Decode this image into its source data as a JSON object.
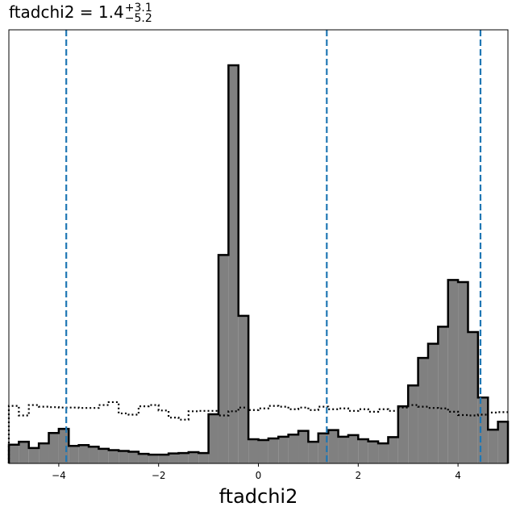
{
  "chart_data": {
    "type": "histogram",
    "title": {
      "param": "ftadchi2",
      "eq": " = ",
      "median": "1.4",
      "upper": "+3.1",
      "lower": "−5.2"
    },
    "xlabel": "ftadchi2",
    "ylabel": "",
    "xlim": [
      -5,
      5
    ],
    "ylim": [
      0,
      1.04
    ],
    "grid": false,
    "x_ticks": [
      {
        "value": -4,
        "label": "−4"
      },
      {
        "value": -2,
        "label": "−2"
      },
      {
        "value": 0,
        "label": "0"
      },
      {
        "value": 2,
        "label": "2"
      },
      {
        "value": 4,
        "label": "4"
      }
    ],
    "bin_edges": [
      -5.0,
      -4.8,
      -4.6,
      -4.4,
      -4.2,
      -4.0,
      -3.8,
      -3.6,
      -3.4,
      -3.2,
      -3.0,
      -2.8,
      -2.6,
      -2.4,
      -2.2,
      -2.0,
      -1.8,
      -1.6,
      -1.4,
      -1.2,
      -1.0,
      -0.8,
      -0.6,
      -0.4,
      -0.2,
      0.0,
      0.2,
      0.4,
      0.6,
      0.8,
      1.0,
      1.2,
      1.4,
      1.6,
      1.8,
      2.0,
      2.2,
      2.4,
      2.6,
      2.8,
      3.0,
      3.2,
      3.4,
      3.6,
      3.8,
      4.0,
      4.2,
      4.4,
      4.6,
      4.8,
      5.0
    ],
    "posterior": [
      0.045,
      0.052,
      0.037,
      0.048,
      0.073,
      0.083,
      0.042,
      0.044,
      0.04,
      0.035,
      0.032,
      0.03,
      0.028,
      0.023,
      0.021,
      0.021,
      0.024,
      0.025,
      0.027,
      0.025,
      0.118,
      0.5,
      0.955,
      0.354,
      0.058,
      0.056,
      0.06,
      0.064,
      0.069,
      0.078,
      0.052,
      0.072,
      0.08,
      0.064,
      0.068,
      0.058,
      0.053,
      0.048,
      0.063,
      0.137,
      0.187,
      0.253,
      0.287,
      0.328,
      0.44,
      0.435,
      0.315,
      0.158,
      0.081,
      0.1
    ],
    "prior": [
      0.138,
      0.115,
      0.14,
      0.136,
      0.135,
      0.134,
      0.134,
      0.133,
      0.133,
      0.14,
      0.147,
      0.12,
      0.117,
      0.137,
      0.14,
      0.127,
      0.11,
      0.105,
      0.125,
      0.126,
      0.126,
      0.115,
      0.125,
      0.134,
      0.128,
      0.132,
      0.138,
      0.136,
      0.13,
      0.134,
      0.128,
      0.136,
      0.13,
      0.132,
      0.126,
      0.13,
      0.124,
      0.13,
      0.126,
      0.134,
      0.14,
      0.136,
      0.133,
      0.132,
      0.124,
      0.116,
      0.115,
      0.117,
      0.122,
      0.123
    ],
    "quantile_lines": [
      -3.85,
      1.37,
      4.45
    ],
    "colors": {
      "fill": "#808080",
      "outline": "#000000",
      "prior": "#000000",
      "quantile": "#1f77b4"
    }
  }
}
